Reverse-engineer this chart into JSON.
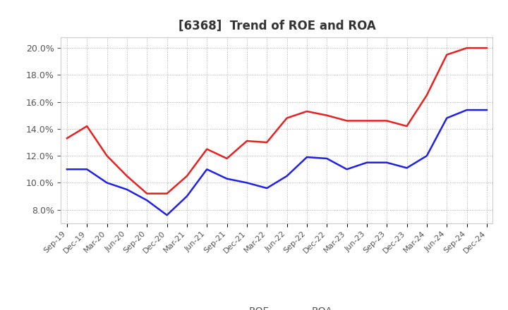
{
  "title": "[6368]  Trend of ROE and ROA",
  "x_labels": [
    "Sep-19",
    "Dec-19",
    "Mar-20",
    "Jun-20",
    "Sep-20",
    "Dec-20",
    "Mar-21",
    "Jun-21",
    "Sep-21",
    "Dec-21",
    "Mar-22",
    "Jun-22",
    "Sep-22",
    "Dec-22",
    "Mar-23",
    "Jun-23",
    "Sep-23",
    "Dec-23",
    "Mar-24",
    "Jun-24",
    "Sep-24",
    "Dec-24"
  ],
  "roe": [
    13.3,
    14.2,
    12.0,
    10.5,
    9.2,
    9.2,
    10.5,
    12.5,
    11.8,
    13.1,
    13.0,
    14.8,
    15.3,
    15.0,
    14.6,
    14.6,
    14.6,
    14.2,
    16.5,
    19.5,
    20.0,
    20.0
  ],
  "roa": [
    11.0,
    11.0,
    10.0,
    9.5,
    8.7,
    7.6,
    9.0,
    11.0,
    10.3,
    10.0,
    9.6,
    10.5,
    11.9,
    11.8,
    11.0,
    11.5,
    11.5,
    11.1,
    12.0,
    14.8,
    15.4,
    15.4
  ],
  "roe_color": "#e82020",
  "roa_color": "#2020e8",
  "ylim_min": 7.0,
  "ylim_max": 20.8,
  "yticks": [
    8.0,
    10.0,
    12.0,
    14.0,
    16.0,
    18.0,
    20.0
  ],
  "background_color": "#ffffff",
  "grid_color": "#999999",
  "legend_roe": "ROE",
  "legend_roa": "ROA",
  "title_color": "#333333",
  "tick_color": "#555555"
}
